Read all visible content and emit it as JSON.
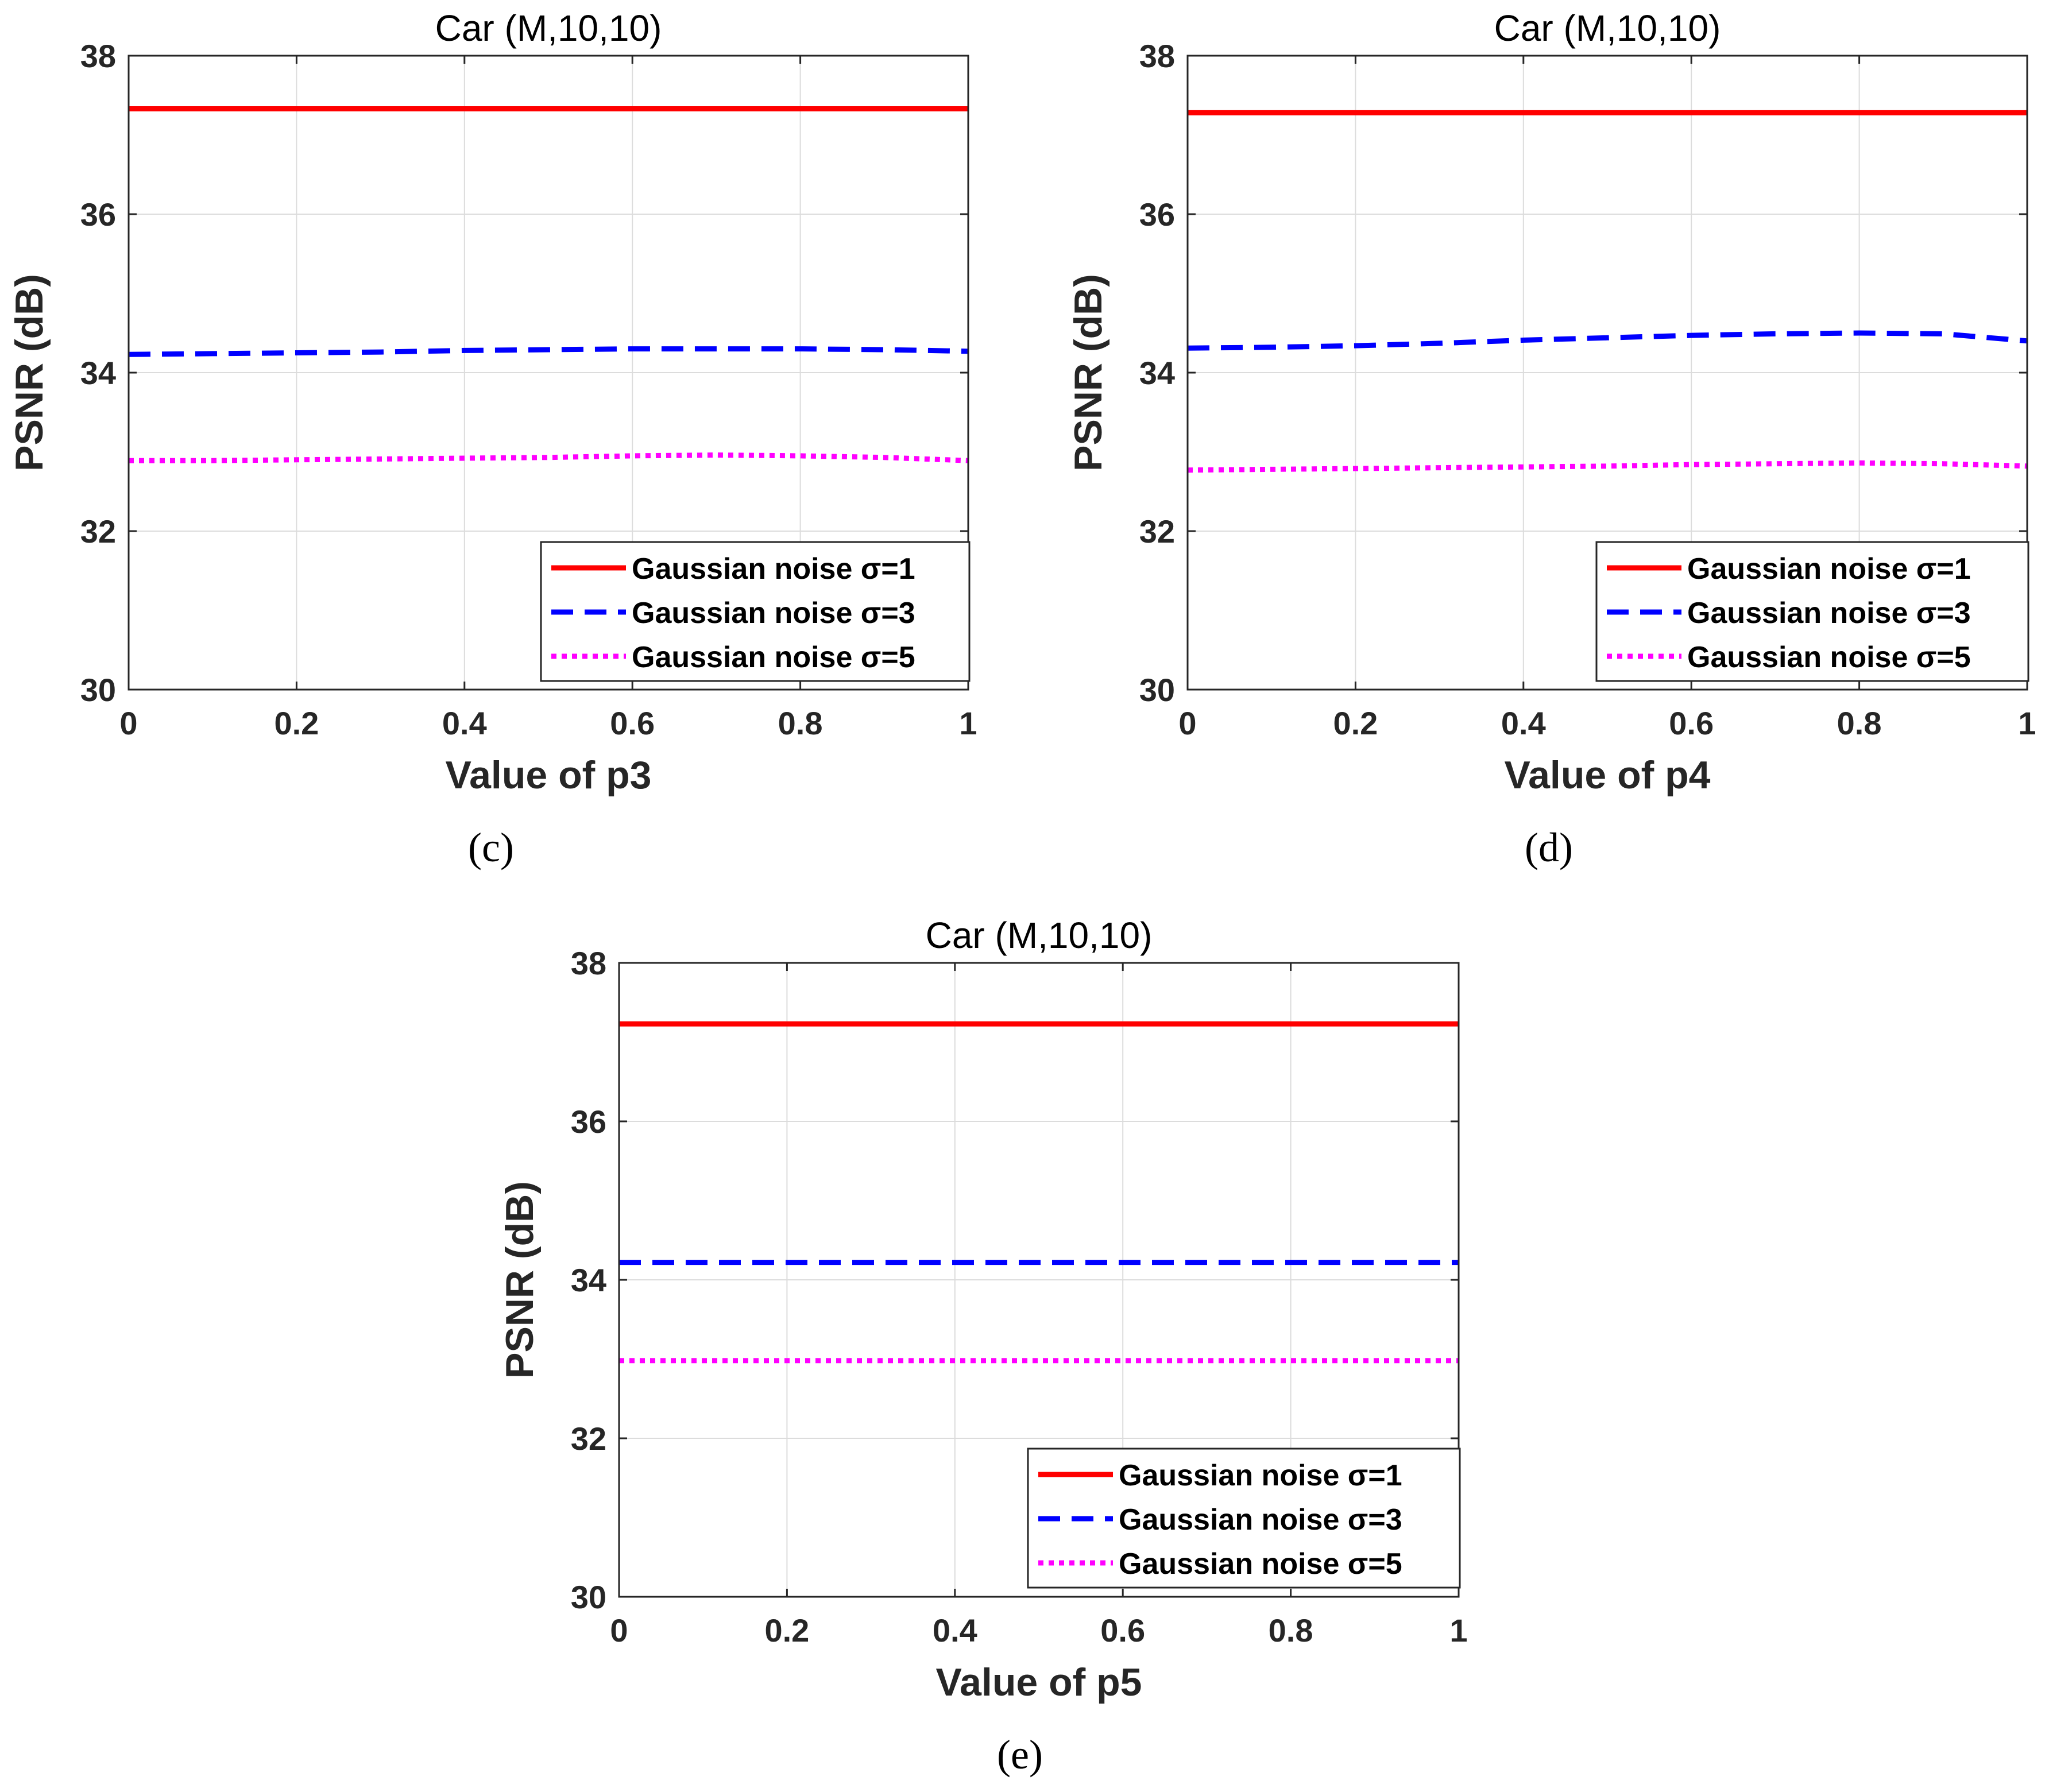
{
  "chart_data": [
    {
      "id": "c",
      "type": "line",
      "title": "Car (M,10,10)",
      "xlabel": "Value of p3",
      "ylabel": "PSNR (dB)",
      "xlim": [
        0,
        1
      ],
      "ylim": [
        30,
        38
      ],
      "xticks": [
        "0",
        "0.2",
        "0.4",
        "0.6",
        "0.8",
        "1"
      ],
      "yticks": [
        "30",
        "32",
        "34",
        "36",
        "38"
      ],
      "grid": true,
      "legend_position": "bottom-right",
      "caption": "(c)",
      "x": [
        0,
        0.1,
        0.2,
        0.3,
        0.4,
        0.5,
        0.6,
        0.7,
        0.8,
        0.9,
        1.0
      ],
      "series": [
        {
          "name": "Gaussian noise σ=1",
          "color": "#ff0000",
          "style": "solid",
          "values": [
            37.33,
            37.33,
            37.33,
            37.33,
            37.33,
            37.33,
            37.33,
            37.33,
            37.33,
            37.33,
            37.33
          ]
        },
        {
          "name": "Gaussian noise σ=3",
          "color": "#0000ff",
          "style": "dashed",
          "values": [
            34.23,
            34.24,
            34.25,
            34.26,
            34.28,
            34.29,
            34.3,
            34.3,
            34.3,
            34.29,
            34.27
          ]
        },
        {
          "name": "Gaussian noise σ=5",
          "color": "#ff00ff",
          "style": "dotted",
          "values": [
            32.89,
            32.89,
            32.9,
            32.91,
            32.92,
            32.93,
            32.95,
            32.96,
            32.95,
            32.93,
            32.89
          ]
        }
      ]
    },
    {
      "id": "d",
      "type": "line",
      "title": "Car (M,10,10)",
      "xlabel": "Value of p4",
      "ylabel": "PSNR (dB)",
      "xlim": [
        0,
        1
      ],
      "ylim": [
        30,
        38
      ],
      "xticks": [
        "0",
        "0.2",
        "0.4",
        "0.6",
        "0.8",
        "1"
      ],
      "yticks": [
        "30",
        "32",
        "34",
        "36",
        "38"
      ],
      "grid": true,
      "legend_position": "bottom-right",
      "caption": "(d)",
      "x": [
        0,
        0.1,
        0.2,
        0.3,
        0.4,
        0.5,
        0.6,
        0.7,
        0.8,
        0.9,
        1.0
      ],
      "series": [
        {
          "name": "Gaussian noise σ=1",
          "color": "#ff0000",
          "style": "solid",
          "values": [
            37.28,
            37.28,
            37.28,
            37.28,
            37.28,
            37.28,
            37.28,
            37.28,
            37.28,
            37.28,
            37.28
          ]
        },
        {
          "name": "Gaussian noise σ=3",
          "color": "#0000ff",
          "style": "dashed",
          "values": [
            34.31,
            34.32,
            34.34,
            34.37,
            34.41,
            34.44,
            34.47,
            34.49,
            34.5,
            34.49,
            34.4
          ]
        },
        {
          "name": "Gaussian noise σ=5",
          "color": "#ff00ff",
          "style": "dotted",
          "values": [
            32.77,
            32.78,
            32.79,
            32.8,
            32.81,
            32.82,
            32.84,
            32.85,
            32.86,
            32.85,
            32.82
          ]
        }
      ]
    },
    {
      "id": "e",
      "type": "line",
      "title": "Car (M,10,10)",
      "xlabel": "Value of p5",
      "ylabel": "PSNR (dB)",
      "xlim": [
        0,
        1
      ],
      "ylim": [
        30,
        38
      ],
      "xticks": [
        "0",
        "0.2",
        "0.4",
        "0.6",
        "0.8",
        "1"
      ],
      "yticks": [
        "30",
        "32",
        "34",
        "36",
        "38"
      ],
      "grid": true,
      "legend_position": "bottom-right",
      "caption": "(e)",
      "x": [
        0,
        0.1,
        0.2,
        0.3,
        0.4,
        0.5,
        0.6,
        0.7,
        0.8,
        0.9,
        1.0
      ],
      "series": [
        {
          "name": "Gaussian noise σ=1",
          "color": "#ff0000",
          "style": "solid",
          "values": [
            37.23,
            37.23,
            37.23,
            37.23,
            37.23,
            37.23,
            37.23,
            37.23,
            37.23,
            37.23,
            37.23
          ]
        },
        {
          "name": "Gaussian noise σ=3",
          "color": "#0000ff",
          "style": "dashed",
          "values": [
            34.22,
            34.22,
            34.22,
            34.22,
            34.22,
            34.22,
            34.22,
            34.22,
            34.22,
            34.22,
            34.22
          ]
        },
        {
          "name": "Gaussian noise σ=5",
          "color": "#ff00ff",
          "style": "dotted",
          "values": [
            32.98,
            32.98,
            32.98,
            32.98,
            32.98,
            32.98,
            32.98,
            32.98,
            32.98,
            32.98,
            32.98
          ]
        }
      ]
    }
  ]
}
